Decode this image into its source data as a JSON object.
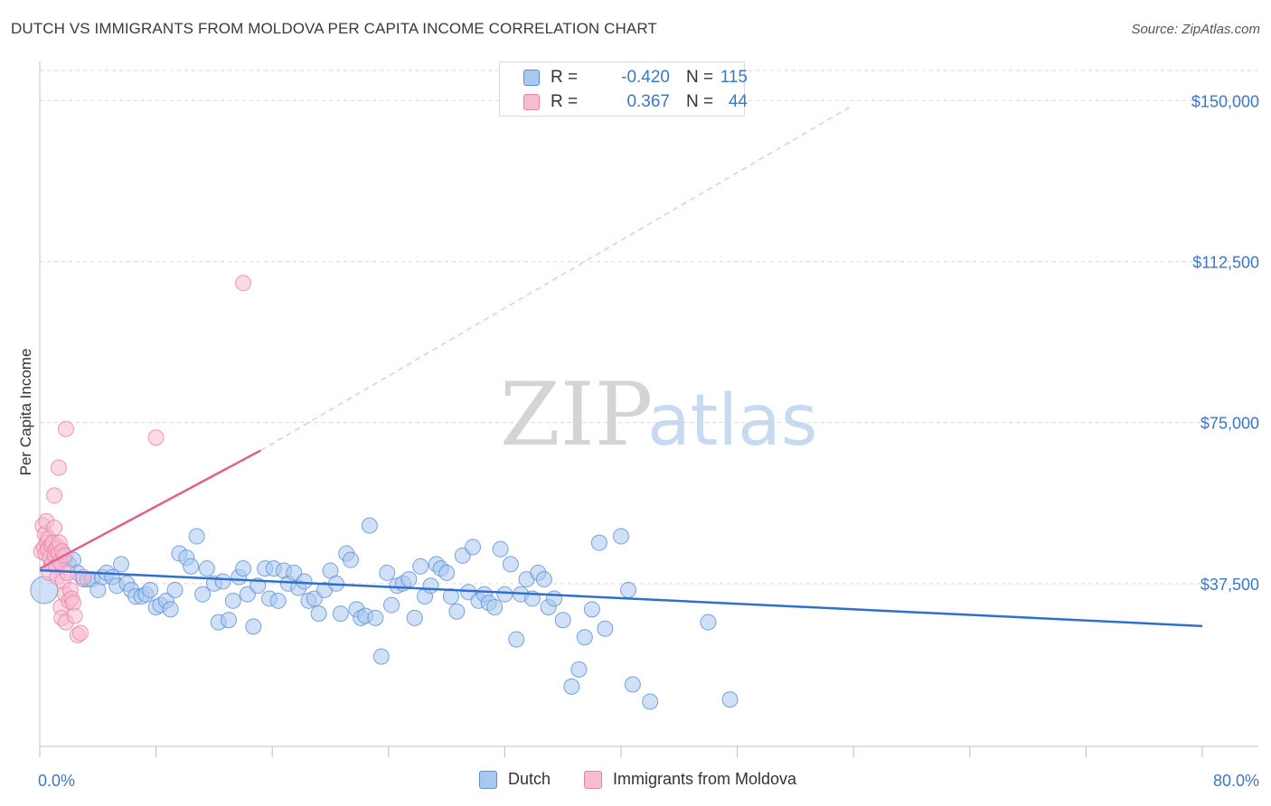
{
  "title": "DUTCH VS IMMIGRANTS FROM MOLDOVA PER CAPITA INCOME CORRELATION CHART",
  "source": "Source: ZipAtlas.com",
  "watermark": {
    "zip": "ZIP",
    "atlas": "atlas"
  },
  "legend": {
    "r_label": "R =",
    "n_label": "N =",
    "dutch": {
      "r": "-0.420",
      "n": "115"
    },
    "moldova": {
      "r": "0.367",
      "n": "44"
    }
  },
  "colors": {
    "dutch_fill": "#a9c8f0",
    "dutch_stroke": "#5b8fd6",
    "dutch_line": "#2f6fce",
    "moldova_fill": "#f7bcd0",
    "moldova_stroke": "#e882a6",
    "moldova_line": "#e0608f",
    "tick_text": "#3f76c6",
    "grid": "#d9d9d9"
  },
  "chart_data": {
    "type": "scatter",
    "title": "DUTCH VS IMMIGRANTS FROM MOLDOVA PER CAPITA INCOME CORRELATION CHART",
    "xlabel": "",
    "ylabel": "Per Capita Income",
    "xlim": [
      0,
      80
    ],
    "ylim": [
      0,
      157000
    ],
    "x_tick_labels": [
      "0.0%",
      "80.0%"
    ],
    "y_ticks": [
      37500,
      75000,
      112500,
      150000
    ],
    "y_tick_labels": [
      "$37,500",
      "$75,000",
      "$112,500",
      "$150,000"
    ],
    "grid": "horizontal dashed",
    "legend_placement": "bottom-center",
    "series": [
      {
        "name": "Dutch",
        "r": -0.42,
        "n": 115,
        "trend": {
          "x0": 0,
          "y0": 40600,
          "x1": 80,
          "y1": 27600
        },
        "points": [
          [
            0.3,
            36000
          ],
          [
            0.6,
            45500
          ],
          [
            0.8,
            42500
          ],
          [
            1.0,
            44000
          ],
          [
            1.3,
            43500
          ],
          [
            1.5,
            45000
          ],
          [
            1.7,
            43000
          ],
          [
            2.0,
            42000
          ],
          [
            2.3,
            43000
          ],
          [
            2.6,
            40000
          ],
          [
            3.0,
            38500
          ],
          [
            3.3,
            38500
          ],
          [
            3.6,
            38500
          ],
          [
            4.0,
            36000
          ],
          [
            4.3,
            39000
          ],
          [
            4.6,
            40000
          ],
          [
            5.0,
            39000
          ],
          [
            5.3,
            37000
          ],
          [
            5.6,
            42000
          ],
          [
            6.0,
            37500
          ],
          [
            6.3,
            36000
          ],
          [
            6.6,
            34500
          ],
          [
            7.0,
            34500
          ],
          [
            7.3,
            35000
          ],
          [
            7.6,
            36000
          ],
          [
            8.0,
            32000
          ],
          [
            8.3,
            32500
          ],
          [
            8.7,
            33500
          ],
          [
            9.0,
            31500
          ],
          [
            9.3,
            36000
          ],
          [
            9.6,
            44500
          ],
          [
            10.1,
            43500
          ],
          [
            10.4,
            41500
          ],
          [
            10.8,
            48500
          ],
          [
            11.2,
            35000
          ],
          [
            11.5,
            41000
          ],
          [
            12.0,
            37500
          ],
          [
            12.3,
            28500
          ],
          [
            12.6,
            38000
          ],
          [
            13.0,
            29000
          ],
          [
            13.3,
            33500
          ],
          [
            13.7,
            39000
          ],
          [
            14.0,
            41000
          ],
          [
            14.3,
            35000
          ],
          [
            14.7,
            27500
          ],
          [
            15.0,
            37000
          ],
          [
            15.5,
            41000
          ],
          [
            15.8,
            34000
          ],
          [
            16.1,
            41000
          ],
          [
            16.4,
            33500
          ],
          [
            16.8,
            40500
          ],
          [
            17.1,
            37500
          ],
          [
            17.5,
            40000
          ],
          [
            17.8,
            36500
          ],
          [
            18.2,
            38000
          ],
          [
            18.5,
            33500
          ],
          [
            18.9,
            34000
          ],
          [
            19.2,
            30500
          ],
          [
            19.6,
            36000
          ],
          [
            20.0,
            40500
          ],
          [
            20.4,
            37500
          ],
          [
            20.7,
            30500
          ],
          [
            21.1,
            44500
          ],
          [
            21.4,
            43000
          ],
          [
            21.8,
            31500
          ],
          [
            22.1,
            29500
          ],
          [
            22.4,
            30000
          ],
          [
            22.7,
            51000
          ],
          [
            23.1,
            29500
          ],
          [
            23.5,
            20500
          ],
          [
            23.9,
            40000
          ],
          [
            24.2,
            32500
          ],
          [
            24.6,
            37000
          ],
          [
            25.0,
            37500
          ],
          [
            25.4,
            38500
          ],
          [
            25.8,
            29500
          ],
          [
            26.2,
            41500
          ],
          [
            26.5,
            34500
          ],
          [
            26.9,
            37000
          ],
          [
            27.3,
            42000
          ],
          [
            27.6,
            41000
          ],
          [
            28.0,
            40000
          ],
          [
            28.3,
            34500
          ],
          [
            28.7,
            31000
          ],
          [
            29.1,
            44000
          ],
          [
            29.5,
            35500
          ],
          [
            29.8,
            46000
          ],
          [
            30.2,
            33500
          ],
          [
            30.6,
            35000
          ],
          [
            30.9,
            33000
          ],
          [
            31.3,
            32000
          ],
          [
            31.7,
            45500
          ],
          [
            32.0,
            35000
          ],
          [
            32.4,
            42000
          ],
          [
            32.8,
            24500
          ],
          [
            33.1,
            35000
          ],
          [
            33.5,
            38500
          ],
          [
            33.9,
            34000
          ],
          [
            34.3,
            40000
          ],
          [
            34.7,
            38500
          ],
          [
            35.0,
            32000
          ],
          [
            35.4,
            34000
          ],
          [
            36.0,
            29000
          ],
          [
            36.6,
            13500
          ],
          [
            37.1,
            17500
          ],
          [
            37.5,
            25000
          ],
          [
            38.0,
            31500
          ],
          [
            38.5,
            47000
          ],
          [
            38.9,
            27000
          ],
          [
            40.0,
            48500
          ],
          [
            40.5,
            36000
          ],
          [
            40.8,
            14000
          ],
          [
            42.0,
            10000
          ],
          [
            46.0,
            28500
          ],
          [
            47.5,
            10500
          ]
        ]
      },
      {
        "name": "Immigrants from Moldova",
        "r": 0.367,
        "n": 44,
        "trend": {
          "x0": 0,
          "y0": 41000,
          "x1": 15.2,
          "y1": 68500
        },
        "trend_extension": {
          "x0": 15.2,
          "y0": 68500,
          "x1": 56,
          "y1": 149000
        },
        "points": [
          [
            0.1,
            45000
          ],
          [
            0.2,
            51000
          ],
          [
            0.3,
            46000
          ],
          [
            0.35,
            49000
          ],
          [
            0.4,
            44500
          ],
          [
            0.45,
            52000
          ],
          [
            0.5,
            47000
          ],
          [
            0.55,
            45500
          ],
          [
            0.6,
            48000
          ],
          [
            0.65,
            40000
          ],
          [
            0.7,
            43500
          ],
          [
            0.8,
            46500
          ],
          [
            0.85,
            42000
          ],
          [
            0.9,
            47000
          ],
          [
            1.0,
            50500
          ],
          [
            1.05,
            44000
          ],
          [
            1.1,
            45500
          ],
          [
            1.15,
            41500
          ],
          [
            1.2,
            39000
          ],
          [
            1.25,
            46000
          ],
          [
            1.3,
            44500
          ],
          [
            1.35,
            47000
          ],
          [
            1.4,
            42500
          ],
          [
            1.45,
            32000
          ],
          [
            1.5,
            29500
          ],
          [
            1.55,
            45000
          ],
          [
            1.6,
            38000
          ],
          [
            1.7,
            44000
          ],
          [
            1.75,
            35000
          ],
          [
            1.8,
            28500
          ],
          [
            1.9,
            40000
          ],
          [
            2.0,
            33500
          ],
          [
            2.1,
            36000
          ],
          [
            2.2,
            34000
          ],
          [
            2.3,
            33000
          ],
          [
            2.4,
            30000
          ],
          [
            2.6,
            25500
          ],
          [
            2.8,
            26000
          ],
          [
            3.0,
            39000
          ],
          [
            1.3,
            64500
          ],
          [
            1.0,
            58000
          ],
          [
            1.8,
            73500
          ],
          [
            8.0,
            71500
          ],
          [
            14.0,
            107500
          ]
        ]
      }
    ]
  }
}
